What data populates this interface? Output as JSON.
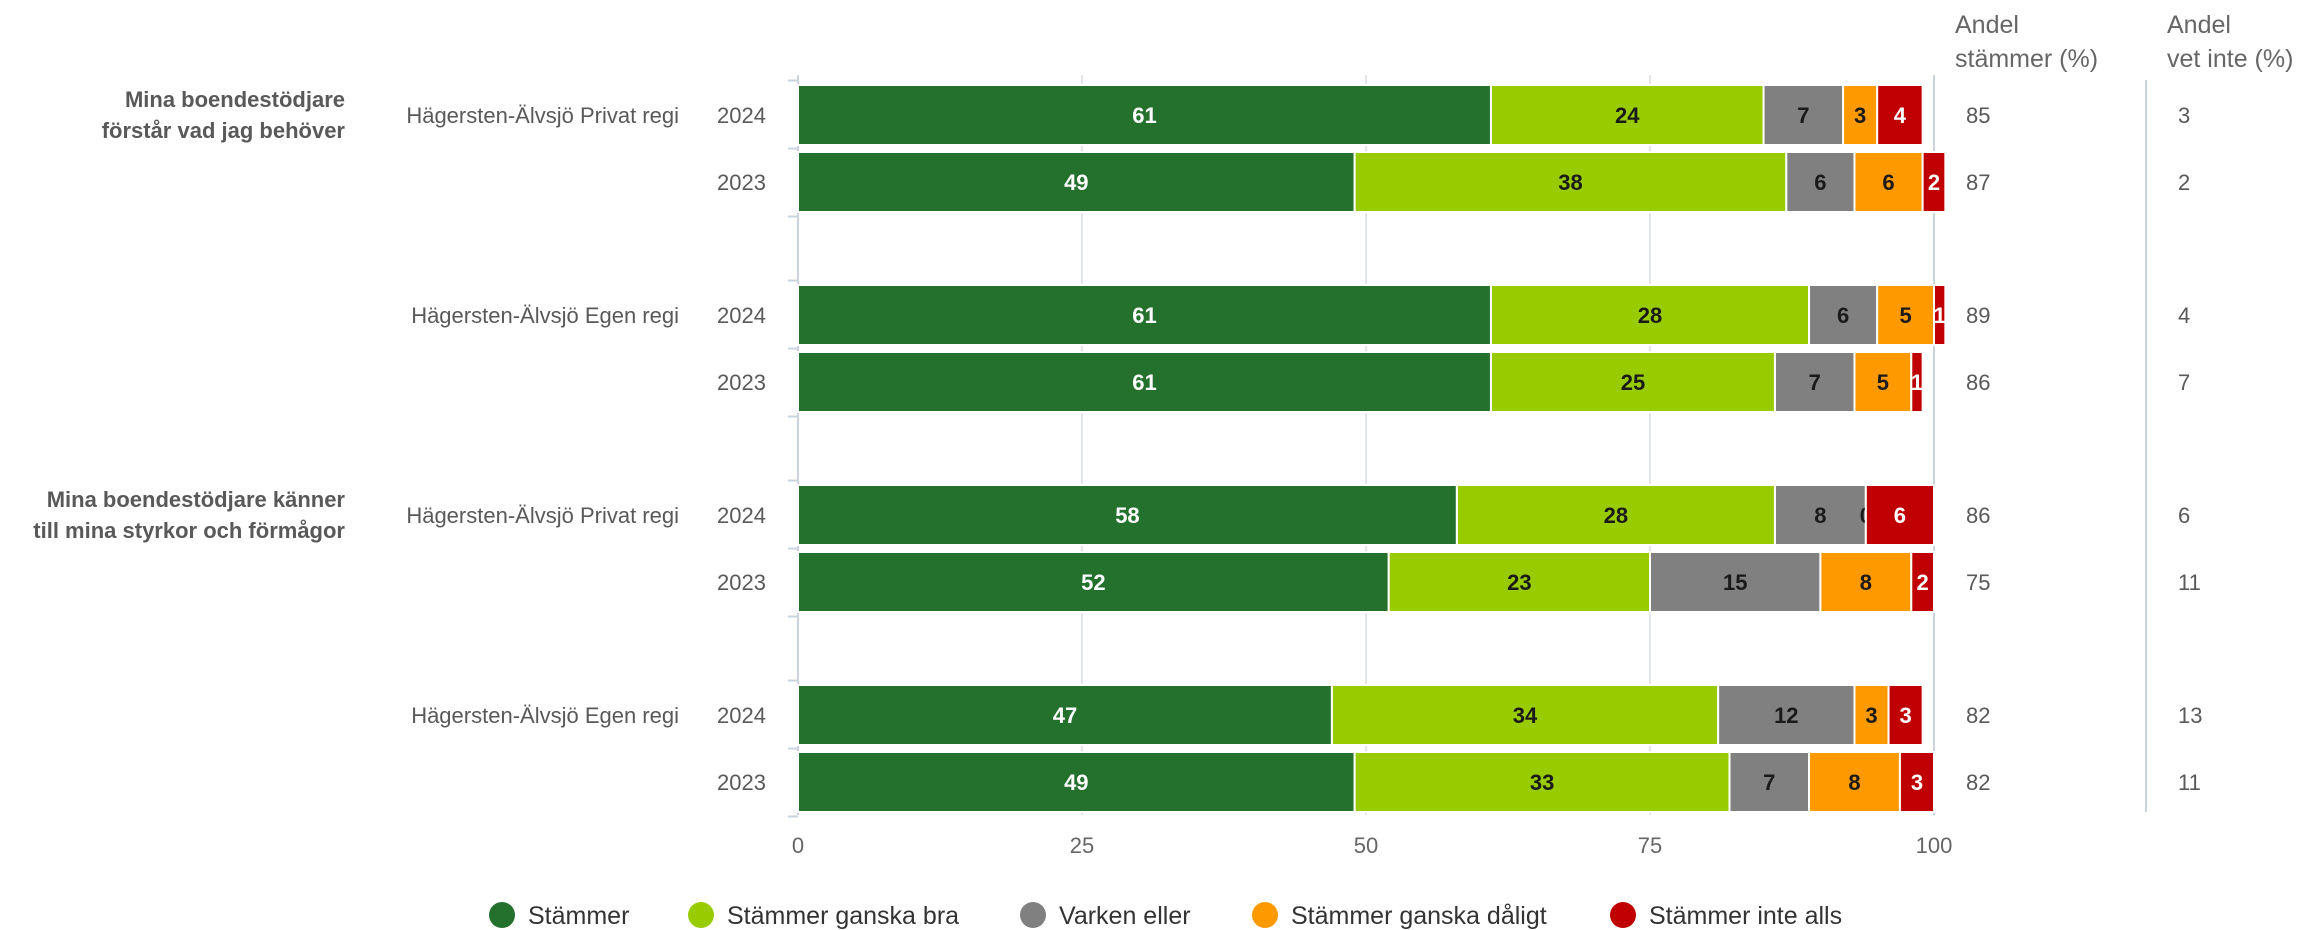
{
  "chart_data": {
    "type": "bar",
    "orientation": "horizontal",
    "stacked": true,
    "xlim": [
      0,
      100
    ],
    "xticks": [
      "0",
      "25",
      "50",
      "75",
      "100"
    ],
    "grid": true,
    "legend_position": "bottom",
    "series": [
      {
        "name": "Stämmer",
        "color": "#24702d"
      },
      {
        "name": "Stämmer ganska bra",
        "color": "#99cc00"
      },
      {
        "name": "Varken eller",
        "color": "#808080"
      },
      {
        "name": "Stämmer ganska dåligt",
        "color": "#ff9900"
      },
      {
        "name": "Stämmer inte alls",
        "color": "#c00000"
      }
    ],
    "side_columns": {
      "share_agree_header": [
        "Andel",
        "stämmer (%)"
      ],
      "share_dontknow_header": [
        "Andel",
        "vet inte (%)"
      ]
    },
    "questions": [
      {
        "label": [
          "Mina boendestödjare",
          "förstår vad jag behöver"
        ],
        "groups": [
          {
            "label": "Hägersten-Älvsjö Privat regi",
            "rows": [
              {
                "year": "2024",
                "values": [
                  61,
                  24,
                  7,
                  3,
                  4
                ],
                "share_agree": "85",
                "share_dontknow": "3"
              },
              {
                "year": "2023",
                "values": [
                  49,
                  38,
                  6,
                  6,
                  2
                ],
                "share_agree": "87",
                "share_dontknow": "2"
              }
            ]
          },
          {
            "label": "Hägersten-Älvsjö Egen regi",
            "rows": [
              {
                "year": "2024",
                "values": [
                  61,
                  28,
                  6,
                  5,
                  1
                ],
                "share_agree": "89",
                "share_dontknow": "4"
              },
              {
                "year": "2023",
                "values": [
                  61,
                  25,
                  7,
                  5,
                  1
                ],
                "share_agree": "86",
                "share_dontknow": "7"
              }
            ]
          }
        ]
      },
      {
        "label": [
          "Mina boendestödjare känner",
          "till mina styrkor och förmågor"
        ],
        "groups": [
          {
            "label": "Hägersten-Älvsjö Privat regi",
            "rows": [
              {
                "year": "2024",
                "values": [
                  58,
                  28,
                  8,
                  0,
                  6
                ],
                "share_agree": "86",
                "share_dontknow": "6"
              },
              {
                "year": "2023",
                "values": [
                  52,
                  23,
                  15,
                  8,
                  2
                ],
                "share_agree": "75",
                "share_dontknow": "11"
              }
            ]
          },
          {
            "label": "Hägersten-Älvsjö Egen regi",
            "rows": [
              {
                "year": "2024",
                "values": [
                  47,
                  34,
                  12,
                  3,
                  3
                ],
                "share_agree": "82",
                "share_dontknow": "13"
              },
              {
                "year": "2023",
                "values": [
                  49,
                  33,
                  7,
                  8,
                  3
                ],
                "share_agree": "82",
                "share_dontknow": "11"
              }
            ]
          }
        ]
      }
    ]
  }
}
